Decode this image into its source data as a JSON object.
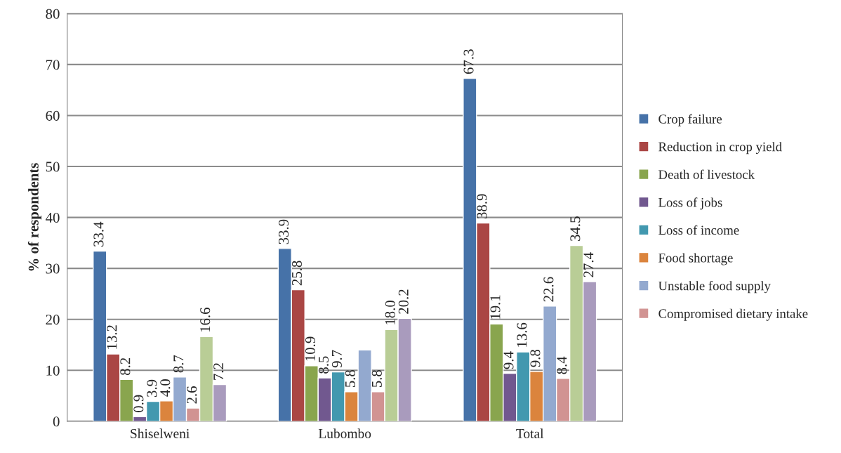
{
  "chart_data": {
    "type": "bar",
    "ylabel": "% of respondents",
    "categories": [
      "Shiselweni",
      "Lubombo",
      "Total"
    ],
    "series": [
      {
        "name": "Crop failure",
        "color": "#4672a8",
        "values": [
          33.4,
          33.9,
          67.3
        ]
      },
      {
        "name": "Reduction in crop yield",
        "color": "#aa4644",
        "values": [
          13.2,
          25.8,
          38.9
        ]
      },
      {
        "name": "Death of livestock",
        "color": "#89a54e",
        "values": [
          8.2,
          10.9,
          19.1
        ]
      },
      {
        "name": "Loss of jobs",
        "color": "#71588f",
        "values": [
          0.9,
          8.5,
          9.4
        ]
      },
      {
        "name": "Loss of income",
        "color": "#4298af",
        "values": [
          3.9,
          9.7,
          13.6
        ]
      },
      {
        "name": "Food shortage",
        "color": "#db843d",
        "values": [
          4.0,
          5.8,
          9.8
        ],
        "value_labels": [
          "4.0",
          "5.8",
          "9.8"
        ]
      },
      {
        "name": "Unstable food supply",
        "color": "#93a9cf",
        "values": [
          8.7,
          14.0,
          22.6
        ],
        "value_labels": [
          "8.7",
          null,
          "22.6"
        ]
      },
      {
        "name": "Compromised dietary intake",
        "color": "#d19392",
        "values": [
          2.6,
          5.8,
          8.4
        ]
      },
      {
        "color": "#b9cd96",
        "values": [
          16.6,
          18.0,
          34.5
        ],
        "value_labels": [
          "16.6",
          "18.0",
          "34.5"
        ]
      },
      {
        "color": "#a99bbd",
        "values": [
          7.2,
          20.2,
          27.4
        ]
      }
    ],
    "ylim": [
      0,
      80
    ],
    "yticks": [
      0,
      10,
      20,
      30,
      40,
      50,
      60,
      70,
      80
    ],
    "data_labels": true,
    "grid": "y",
    "legend": "right"
  }
}
